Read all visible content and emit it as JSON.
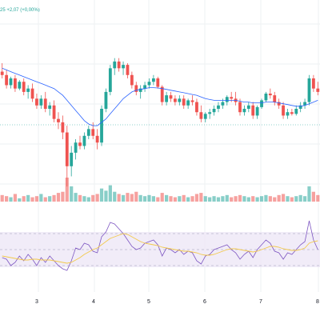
{
  "header": {
    "price_change_text": "25  +2,07 (+0,00%)"
  },
  "colors": {
    "up": "#26a69a",
    "down": "#ef5350",
    "ma_line": "#2962ff",
    "rsi_line": "#7e57c2",
    "rsi_ma_line": "#f2c94c",
    "rsi_band_fill": "#ede7f6",
    "grid": "#eef0f3",
    "axis_text": "#131722"
  },
  "chart_data": [
    {
      "type": "candlestick",
      "title": "",
      "x_ticks": [
        "3",
        "4",
        "5",
        "6",
        "7",
        "8"
      ],
      "candles": [
        {
          "o": 96,
          "h": 101,
          "l": 92,
          "c": 94
        },
        {
          "o": 94,
          "h": 97,
          "l": 86,
          "c": 88
        },
        {
          "o": 88,
          "h": 93,
          "l": 86,
          "c": 92
        },
        {
          "o": 92,
          "h": 94,
          "l": 84,
          "c": 86
        },
        {
          "o": 86,
          "h": 91,
          "l": 85,
          "c": 90
        },
        {
          "o": 90,
          "h": 92,
          "l": 82,
          "c": 84
        },
        {
          "o": 84,
          "h": 88,
          "l": 80,
          "c": 86
        },
        {
          "o": 86,
          "h": 89,
          "l": 78,
          "c": 80
        },
        {
          "o": 80,
          "h": 83,
          "l": 74,
          "c": 76
        },
        {
          "o": 76,
          "h": 82,
          "l": 74,
          "c": 80
        },
        {
          "o": 80,
          "h": 84,
          "l": 72,
          "c": 74
        },
        {
          "o": 74,
          "h": 78,
          "l": 70,
          "c": 76
        },
        {
          "o": 76,
          "h": 79,
          "l": 66,
          "c": 68
        },
        {
          "o": 68,
          "h": 72,
          "l": 62,
          "c": 66
        },
        {
          "o": 66,
          "h": 70,
          "l": 56,
          "c": 60
        },
        {
          "o": 60,
          "h": 64,
          "l": 28,
          "c": 40
        },
        {
          "o": 40,
          "h": 52,
          "l": 34,
          "c": 48
        },
        {
          "o": 48,
          "h": 56,
          "l": 44,
          "c": 54
        },
        {
          "o": 54,
          "h": 58,
          "l": 50,
          "c": 52
        },
        {
          "o": 52,
          "h": 60,
          "l": 50,
          "c": 58
        },
        {
          "o": 58,
          "h": 64,
          "l": 56,
          "c": 62
        },
        {
          "o": 62,
          "h": 66,
          "l": 56,
          "c": 58
        },
        {
          "o": 58,
          "h": 62,
          "l": 50,
          "c": 54
        },
        {
          "o": 54,
          "h": 76,
          "l": 52,
          "c": 74
        },
        {
          "o": 74,
          "h": 86,
          "l": 72,
          "c": 84
        },
        {
          "o": 84,
          "h": 100,
          "l": 82,
          "c": 98
        },
        {
          "o": 98,
          "h": 104,
          "l": 94,
          "c": 102
        },
        {
          "o": 102,
          "h": 104,
          "l": 96,
          "c": 98
        },
        {
          "o": 98,
          "h": 102,
          "l": 94,
          "c": 100
        },
        {
          "o": 100,
          "h": 101,
          "l": 92,
          "c": 94
        },
        {
          "o": 94,
          "h": 96,
          "l": 86,
          "c": 88
        },
        {
          "o": 88,
          "h": 90,
          "l": 82,
          "c": 84
        },
        {
          "o": 84,
          "h": 88,
          "l": 80,
          "c": 86
        },
        {
          "o": 86,
          "h": 90,
          "l": 84,
          "c": 88
        },
        {
          "o": 88,
          "h": 92,
          "l": 86,
          "c": 90
        },
        {
          "o": 90,
          "h": 94,
          "l": 88,
          "c": 92
        },
        {
          "o": 92,
          "h": 93,
          "l": 86,
          "c": 87
        },
        {
          "o": 87,
          "h": 88,
          "l": 76,
          "c": 78
        },
        {
          "o": 78,
          "h": 84,
          "l": 76,
          "c": 82
        },
        {
          "o": 82,
          "h": 84,
          "l": 78,
          "c": 80
        },
        {
          "o": 80,
          "h": 82,
          "l": 76,
          "c": 78
        },
        {
          "o": 78,
          "h": 82,
          "l": 76,
          "c": 80
        },
        {
          "o": 80,
          "h": 82,
          "l": 74,
          "c": 76
        },
        {
          "o": 76,
          "h": 80,
          "l": 74,
          "c": 79
        },
        {
          "o": 79,
          "h": 82,
          "l": 76,
          "c": 78
        },
        {
          "o": 78,
          "h": 80,
          "l": 70,
          "c": 72
        },
        {
          "o": 72,
          "h": 76,
          "l": 66,
          "c": 68
        },
        {
          "o": 68,
          "h": 72,
          "l": 66,
          "c": 71
        },
        {
          "o": 71,
          "h": 74,
          "l": 68,
          "c": 72
        },
        {
          "o": 72,
          "h": 76,
          "l": 70,
          "c": 74
        },
        {
          "o": 74,
          "h": 78,
          "l": 72,
          "c": 76
        },
        {
          "o": 76,
          "h": 80,
          "l": 74,
          "c": 78
        },
        {
          "o": 78,
          "h": 82,
          "l": 76,
          "c": 81
        },
        {
          "o": 81,
          "h": 84,
          "l": 78,
          "c": 80
        },
        {
          "o": 80,
          "h": 84,
          "l": 76,
          "c": 78
        },
        {
          "o": 78,
          "h": 80,
          "l": 70,
          "c": 72
        },
        {
          "o": 72,
          "h": 76,
          "l": 70,
          "c": 74
        },
        {
          "o": 74,
          "h": 78,
          "l": 72,
          "c": 76
        },
        {
          "o": 76,
          "h": 78,
          "l": 68,
          "c": 70
        },
        {
          "o": 70,
          "h": 76,
          "l": 68,
          "c": 75
        },
        {
          "o": 75,
          "h": 80,
          "l": 74,
          "c": 79
        },
        {
          "o": 79,
          "h": 84,
          "l": 78,
          "c": 83
        },
        {
          "o": 83,
          "h": 86,
          "l": 80,
          "c": 82
        },
        {
          "o": 82,
          "h": 84,
          "l": 76,
          "c": 78
        },
        {
          "o": 78,
          "h": 80,
          "l": 74,
          "c": 76
        },
        {
          "o": 76,
          "h": 78,
          "l": 68,
          "c": 70
        },
        {
          "o": 70,
          "h": 74,
          "l": 68,
          "c": 72
        },
        {
          "o": 72,
          "h": 74,
          "l": 70,
          "c": 71
        },
        {
          "o": 71,
          "h": 76,
          "l": 70,
          "c": 74
        },
        {
          "o": 74,
          "h": 78,
          "l": 72,
          "c": 76
        },
        {
          "o": 76,
          "h": 80,
          "l": 74,
          "c": 78
        },
        {
          "o": 78,
          "h": 94,
          "l": 76,
          "c": 92
        },
        {
          "o": 92,
          "h": 94,
          "l": 84,
          "c": 86
        },
        {
          "o": 86,
          "h": 90,
          "l": 82,
          "c": 84
        }
      ],
      "moving_average": [
        98,
        97,
        96,
        95,
        94,
        93,
        92,
        91,
        90,
        89,
        88,
        87,
        86,
        84,
        82,
        79,
        76,
        73,
        70,
        67,
        65,
        64,
        64,
        66,
        68,
        71,
        74,
        77,
        80,
        82,
        84,
        85,
        85.5,
        86,
        86.5,
        86.5,
        86.3,
        86,
        85.5,
        85,
        84.5,
        84,
        83.5,
        83,
        82.5,
        82,
        81,
        80,
        79.5,
        79,
        79,
        79,
        79,
        79,
        79,
        78.5,
        78,
        78,
        77.5,
        77.5,
        77.5,
        78,
        78,
        78,
        77.5,
        77,
        76.5,
        76,
        75.5,
        75.5,
        76,
        77,
        78,
        79
      ],
      "volume": [
        6,
        5,
        4,
        7,
        3,
        5,
        6,
        4,
        5,
        7,
        4,
        5,
        6,
        8,
        9,
        22,
        14,
        8,
        6,
        5,
        4,
        6,
        7,
        12,
        10,
        15,
        9,
        7,
        6,
        8,
        7,
        9,
        6,
        5,
        6,
        5,
        4,
        8,
        6,
        5,
        4,
        5,
        6,
        4,
        5,
        7,
        8,
        5,
        4,
        5,
        4,
        5,
        6,
        4,
        5,
        6,
        5,
        4,
        5,
        4,
        5,
        6,
        5,
        4,
        6,
        7,
        5,
        4,
        5,
        6,
        5,
        14,
        9,
        6
      ],
      "ylim": [
        20,
        110
      ]
    },
    {
      "type": "line",
      "title": "",
      "series": [
        {
          "values": [
            40,
            38,
            30,
            34,
            42,
            36,
            44,
            38,
            30,
            40,
            34,
            42,
            36,
            30,
            26,
            24,
            36,
            52,
            50,
            58,
            56,
            48,
            46,
            66,
            72,
            84,
            82,
            76,
            70,
            62,
            54,
            50,
            52,
            58,
            60,
            62,
            56,
            42,
            52,
            50,
            46,
            50,
            44,
            48,
            46,
            36,
            32,
            42,
            44,
            50,
            52,
            54,
            56,
            50,
            46,
            38,
            44,
            48,
            40,
            50,
            56,
            62,
            58,
            48,
            46,
            38,
            46,
            44,
            50,
            56,
            60,
            86,
            62,
            50
          ]
        },
        {
          "values": [
            42,
            41,
            40,
            39,
            38,
            37,
            37,
            38,
            38,
            37,
            37,
            37,
            36,
            35,
            34,
            33,
            34,
            37,
            40,
            44,
            47,
            50,
            52,
            56,
            60,
            64,
            66,
            68,
            70,
            69,
            66,
            63,
            60,
            58,
            57,
            56,
            55,
            53,
            52,
            51,
            50,
            49,
            48,
            48,
            47,
            46,
            44,
            43,
            43,
            44,
            46,
            48,
            50,
            51,
            51,
            50,
            49,
            48,
            47,
            48,
            50,
            52,
            54,
            54,
            53,
            51,
            50,
            49,
            49,
            50,
            52,
            58,
            60,
            61
          ]
        }
      ],
      "ylim": [
        0,
        100
      ],
      "bands": [
        30,
        50,
        70
      ]
    }
  ]
}
